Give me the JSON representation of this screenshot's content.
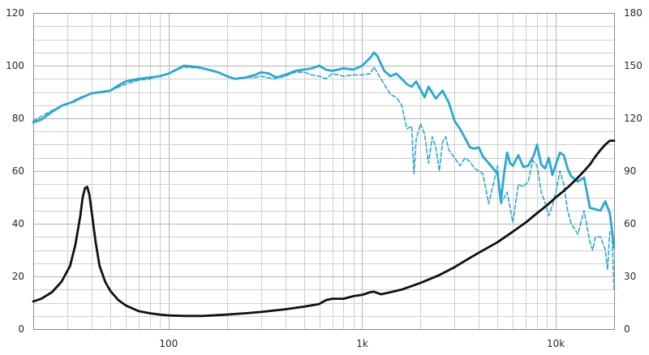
{
  "chart_data": {
    "type": "line",
    "title": "",
    "xlabel": "",
    "ylabel": "",
    "xscale": "log",
    "xlim": [
      20,
      20000
    ],
    "ylim": [
      0,
      120
    ],
    "y2lim": [
      0,
      180
    ],
    "grid": true,
    "x_tick_labels": [
      "100",
      "1k",
      "10k"
    ],
    "x_tick_values": [
      100,
      1000,
      10000
    ],
    "y_tick_labels": [
      "0",
      "20",
      "40",
      "60",
      "80",
      "100",
      "120"
    ],
    "y2_tick_labels": [
      "0",
      "30",
      "60",
      "90",
      "120",
      "150",
      "180"
    ],
    "colors": {
      "response": "#29a8d3",
      "response_offaxis": "#29a8d3",
      "impedance": "#111111"
    },
    "series": [
      {
        "id": "response",
        "axis": "left",
        "style": "solid",
        "points": [
          [
            20,
            78.5
          ],
          [
            22,
            79.5
          ],
          [
            25,
            82.5
          ],
          [
            28,
            84.8
          ],
          [
            32,
            86.2
          ],
          [
            36,
            88
          ],
          [
            40,
            89.5
          ],
          [
            45,
            90
          ],
          [
            50,
            90.5
          ],
          [
            55,
            92.5
          ],
          [
            60,
            94
          ],
          [
            70,
            95
          ],
          [
            80,
            95.5
          ],
          [
            90,
            96
          ],
          [
            100,
            97
          ],
          [
            110,
            98.5
          ],
          [
            120,
            100
          ],
          [
            140,
            99.5
          ],
          [
            160,
            98.5
          ],
          [
            180,
            97.5
          ],
          [
            200,
            96
          ],
          [
            220,
            95
          ],
          [
            250,
            95.5
          ],
          [
            280,
            96.5
          ],
          [
            300,
            97.5
          ],
          [
            330,
            97
          ],
          [
            360,
            95.5
          ],
          [
            400,
            96.5
          ],
          [
            450,
            98
          ],
          [
            500,
            98.5
          ],
          [
            550,
            99
          ],
          [
            600,
            100
          ],
          [
            650,
            98.5
          ],
          [
            700,
            98
          ],
          [
            800,
            99
          ],
          [
            900,
            98.5
          ],
          [
            1000,
            100
          ],
          [
            1100,
            103
          ],
          [
            1150,
            105
          ],
          [
            1200,
            103.5
          ],
          [
            1300,
            98
          ],
          [
            1400,
            96
          ],
          [
            1500,
            97
          ],
          [
            1600,
            95
          ],
          [
            1700,
            93
          ],
          [
            1800,
            92
          ],
          [
            1900,
            94
          ],
          [
            2000,
            91
          ],
          [
            2100,
            88
          ],
          [
            2200,
            92
          ],
          [
            2400,
            87.5
          ],
          [
            2600,
            90.5
          ],
          [
            2800,
            86
          ],
          [
            3000,
            79
          ],
          [
            3200,
            76
          ],
          [
            3400,
            72.5
          ],
          [
            3600,
            69
          ],
          [
            3800,
            68.5
          ],
          [
            4000,
            69
          ],
          [
            4200,
            65.5
          ],
          [
            4500,
            63
          ],
          [
            5000,
            59
          ],
          [
            5200,
            48.5
          ],
          [
            5400,
            59
          ],
          [
            5600,
            67
          ],
          [
            5800,
            63
          ],
          [
            6000,
            62
          ],
          [
            6400,
            66
          ],
          [
            6800,
            61.5
          ],
          [
            7200,
            62
          ],
          [
            7700,
            66
          ],
          [
            8000,
            70
          ],
          [
            8400,
            62.5
          ],
          [
            8800,
            61
          ],
          [
            9200,
            65
          ],
          [
            9600,
            58.5
          ],
          [
            10000,
            62.5
          ],
          [
            10500,
            67
          ],
          [
            11000,
            66
          ],
          [
            11500,
            61
          ],
          [
            12000,
            58
          ],
          [
            13000,
            56
          ],
          [
            14000,
            57.5
          ],
          [
            15000,
            46
          ],
          [
            16000,
            45.5
          ],
          [
            17000,
            45
          ],
          [
            18000,
            48.5
          ],
          [
            19000,
            44
          ],
          [
            20000,
            31
          ]
        ]
      },
      {
        "id": "response_offaxis",
        "axis": "left",
        "style": "dashed",
        "points": [
          [
            20,
            79
          ],
          [
            25,
            83
          ],
          [
            30,
            85.5
          ],
          [
            35,
            88
          ],
          [
            40,
            89.5
          ],
          [
            50,
            90.5
          ],
          [
            60,
            93
          ],
          [
            70,
            94.5
          ],
          [
            80,
            95
          ],
          [
            100,
            97
          ],
          [
            120,
            99.5
          ],
          [
            150,
            99
          ],
          [
            180,
            97.5
          ],
          [
            200,
            96
          ],
          [
            220,
            95
          ],
          [
            250,
            95.5
          ],
          [
            280,
            95.5
          ],
          [
            300,
            96
          ],
          [
            350,
            95
          ],
          [
            400,
            96
          ],
          [
            450,
            97.5
          ],
          [
            500,
            97.5
          ],
          [
            550,
            96.5
          ],
          [
            600,
            96
          ],
          [
            650,
            95
          ],
          [
            700,
            97
          ],
          [
            800,
            96
          ],
          [
            900,
            96.5
          ],
          [
            1000,
            96.5
          ],
          [
            1100,
            97
          ],
          [
            1150,
            99.5
          ],
          [
            1250,
            95
          ],
          [
            1400,
            89
          ],
          [
            1500,
            88
          ],
          [
            1600,
            85
          ],
          [
            1700,
            76
          ],
          [
            1800,
            77
          ],
          [
            1850,
            59
          ],
          [
            1900,
            72
          ],
          [
            2000,
            78
          ],
          [
            2100,
            74
          ],
          [
            2200,
            63
          ],
          [
            2300,
            73
          ],
          [
            2400,
            69
          ],
          [
            2500,
            60
          ],
          [
            2600,
            71
          ],
          [
            2700,
            73
          ],
          [
            2800,
            68
          ],
          [
            3000,
            65
          ],
          [
            3200,
            62
          ],
          [
            3400,
            65
          ],
          [
            3600,
            63.5
          ],
          [
            3800,
            61
          ],
          [
            4000,
            60
          ],
          [
            4200,
            59
          ],
          [
            4500,
            47.5
          ],
          [
            5000,
            62
          ],
          [
            5200,
            47.5
          ],
          [
            5600,
            52
          ],
          [
            6000,
            40.5
          ],
          [
            6400,
            55
          ],
          [
            6800,
            54
          ],
          [
            7200,
            56
          ],
          [
            7600,
            64
          ],
          [
            8000,
            62
          ],
          [
            8400,
            52
          ],
          [
            8800,
            48
          ],
          [
            9200,
            43
          ],
          [
            9600,
            47
          ],
          [
            10000,
            52
          ],
          [
            10500,
            60
          ],
          [
            11000,
            55
          ],
          [
            11500,
            45
          ],
          [
            12000,
            40
          ],
          [
            13000,
            36
          ],
          [
            14000,
            45
          ],
          [
            15000,
            33
          ],
          [
            15500,
            30
          ],
          [
            16000,
            35
          ],
          [
            17000,
            35
          ],
          [
            18000,
            30
          ],
          [
            18500,
            22.5
          ],
          [
            19000,
            37
          ],
          [
            19500,
            36
          ],
          [
            20000,
            15
          ]
        ]
      },
      {
        "id": "impedance",
        "axis": "left",
        "style": "solid",
        "points": [
          [
            20,
            10.5
          ],
          [
            22,
            11.5
          ],
          [
            25,
            14
          ],
          [
            28,
            18
          ],
          [
            31,
            24
          ],
          [
            33,
            32
          ],
          [
            35,
            43
          ],
          [
            36,
            50
          ],
          [
            37,
            53.5
          ],
          [
            38,
            54
          ],
          [
            39,
            51
          ],
          [
            40,
            45
          ],
          [
            42,
            33
          ],
          [
            44,
            24
          ],
          [
            47,
            18
          ],
          [
            50,
            14.5
          ],
          [
            55,
            11
          ],
          [
            60,
            9
          ],
          [
            70,
            6.8
          ],
          [
            80,
            6
          ],
          [
            90,
            5.5
          ],
          [
            100,
            5.2
          ],
          [
            120,
            5
          ],
          [
            150,
            5
          ],
          [
            200,
            5.5
          ],
          [
            250,
            6
          ],
          [
            300,
            6.5
          ],
          [
            400,
            7.5
          ],
          [
            500,
            8.5
          ],
          [
            600,
            9.5
          ],
          [
            650,
            11
          ],
          [
            700,
            11.5
          ],
          [
            800,
            11.5
          ],
          [
            900,
            12.5
          ],
          [
            1000,
            13
          ],
          [
            1100,
            14
          ],
          [
            1150,
            14.2
          ],
          [
            1250,
            13.2
          ],
          [
            1400,
            14
          ],
          [
            1600,
            15
          ],
          [
            2000,
            17.5
          ],
          [
            2500,
            20.5
          ],
          [
            3000,
            23.5
          ],
          [
            3500,
            26.5
          ],
          [
            4000,
            29
          ],
          [
            5000,
            33
          ],
          [
            6000,
            37
          ],
          [
            7000,
            40.5
          ],
          [
            8000,
            44
          ],
          [
            9000,
            47
          ],
          [
            10000,
            50
          ],
          [
            11000,
            52.5
          ],
          [
            12000,
            55
          ],
          [
            13000,
            57.5
          ],
          [
            14000,
            60
          ],
          [
            15000,
            62.5
          ],
          [
            16000,
            65.5
          ],
          [
            17000,
            68
          ],
          [
            18000,
            70
          ],
          [
            19000,
            71.5
          ],
          [
            20000,
            71.5
          ]
        ]
      }
    ]
  }
}
